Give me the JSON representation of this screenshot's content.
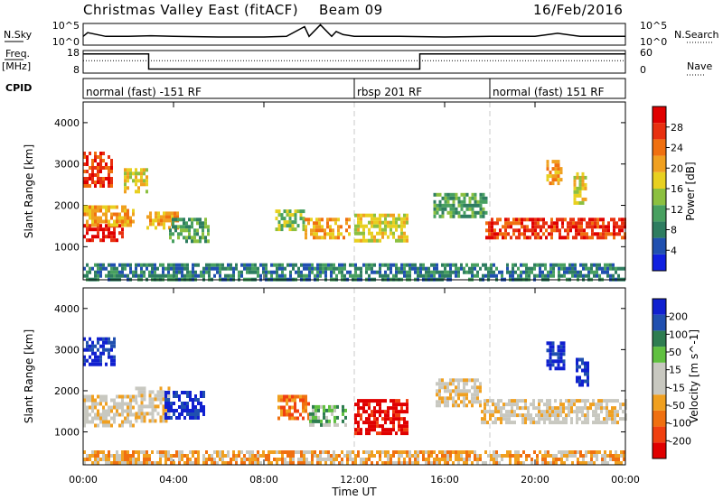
{
  "header": {
    "station": "Christmas Valley East (fitACF)",
    "beam": "Beam 09",
    "date": "16/Feb/2016"
  },
  "left_labels": {
    "nsky": "N.Sky",
    "freq": "Freq.",
    "freq_unit": "[MHz]",
    "cpid": "CPID"
  },
  "right_labels": {
    "nsearch": "N.Search",
    "nave": "Nave"
  },
  "cpid_segments": [
    {
      "label": "normal (fast) -151 RF",
      "start_hour": 0
    },
    {
      "label": "rbsp 201 RF",
      "start_hour": 12
    },
    {
      "label": "normal (fast) 151 RF",
      "start_hour": 18
    }
  ],
  "colors": {
    "power_scale": [
      "#1020e0",
      "#2050b0",
      "#2e7d60",
      "#48a060",
      "#8cc040",
      "#e8d020",
      "#f0a020",
      "#f07010",
      "#e83010",
      "#e00000"
    ],
    "velocity_scale": [
      "#e00000",
      "#f04010",
      "#f07010",
      "#f0a020",
      "#c8c8c0",
      "#c8c8c0",
      "#60c040",
      "#2e7d50",
      "#2050b0",
      "#1020d0"
    ],
    "noise_trace": "#000000",
    "guide_line": "#c8c8c8"
  },
  "chart_data": [
    {
      "type": "line",
      "name_label": "N.Sky",
      "ylabels": [
        "10^5",
        "10^0"
      ],
      "right_ylabels": [
        "10^5",
        "10^0"
      ],
      "x": [
        0,
        0.2,
        1,
        2,
        3,
        4,
        6,
        8,
        9,
        9.8,
        10,
        10.5,
        11,
        11.2,
        11.5,
        12,
        14,
        16,
        18,
        20,
        21,
        22,
        24
      ],
      "y": [
        1.0,
        1.6,
        1.0,
        1.0,
        1.1,
        1.0,
        0.9,
        0.9,
        1.0,
        2.6,
        1.0,
        2.9,
        1.0,
        1.8,
        1.3,
        1.0,
        1.0,
        0.9,
        1.0,
        1.0,
        1.5,
        1.0,
        1.0
      ]
    },
    {
      "type": "line",
      "name_label": "Freq. [MHz]",
      "ylim": [
        8,
        18
      ],
      "yticks": [
        8,
        18
      ],
      "right_yticks": [
        0,
        60
      ],
      "x": [
        0,
        2.9,
        2.9,
        14.9,
        14.9,
        24
      ],
      "frequency": [
        16.5,
        16.5,
        9.8,
        9.8,
        16.5,
        16.5
      ],
      "nave_level": 13.5
    },
    {
      "type": "heatmap",
      "parameter": "Power [dB]",
      "ylabel": "Slant Range [km]",
      "ylim": [
        200,
        4500
      ],
      "yticks": [
        1000,
        2000,
        3000,
        4000
      ],
      "xlim": [
        0,
        24
      ],
      "colorbar_ticks": [
        4,
        8,
        12,
        16,
        20,
        24,
        28
      ],
      "regions": [
        {
          "t0": 0.0,
          "t1": 1.8,
          "r0": 1150,
          "r1": 1550,
          "level": 9
        },
        {
          "t0": 0.0,
          "t1": 2.2,
          "r0": 1550,
          "r1": 2000,
          "level": 6
        },
        {
          "t0": 0.0,
          "t1": 1.3,
          "r0": 2500,
          "r1": 3300,
          "level": 8
        },
        {
          "t0": 1.8,
          "t1": 2.8,
          "r0": 2300,
          "r1": 2900,
          "level": 5
        },
        {
          "t0": 2.8,
          "t1": 4.2,
          "r0": 1500,
          "r1": 1850,
          "level": 6
        },
        {
          "t0": 3.8,
          "t1": 5.5,
          "r0": 1100,
          "r1": 1700,
          "level": 3
        },
        {
          "t0": 8.5,
          "t1": 9.8,
          "r0": 1400,
          "r1": 1900,
          "level": 4
        },
        {
          "t0": 9.8,
          "t1": 11.8,
          "r0": 1250,
          "r1": 1700,
          "level": 6
        },
        {
          "t0": 12.0,
          "t1": 14.4,
          "r0": 1150,
          "r1": 1800,
          "level": 5
        },
        {
          "t0": 15.5,
          "t1": 17.8,
          "r0": 1700,
          "r1": 2300,
          "level": 3
        },
        {
          "t0": 17.8,
          "t1": 24.0,
          "r0": 1200,
          "r1": 1700,
          "level": 8
        },
        {
          "t0": 20.5,
          "t1": 21.2,
          "r0": 2500,
          "r1": 3100,
          "level": 6
        },
        {
          "t0": 21.7,
          "t1": 22.2,
          "r0": 2100,
          "r1": 2800,
          "level": 5
        },
        {
          "t0": 0.0,
          "t1": 24.0,
          "r0": 250,
          "r1": 600,
          "level": 2
        }
      ]
    },
    {
      "type": "heatmap",
      "parameter": "Velocity [m s^-1]",
      "ylabel": "Slant Range [km]",
      "ylim": [
        200,
        4500
      ],
      "yticks": [
        1000,
        2000,
        3000,
        4000
      ],
      "xlim": [
        0,
        24
      ],
      "xticks": [
        "00:00",
        "04:00",
        "08:00",
        "12:00",
        "16:00",
        "20:00",
        "00:00"
      ],
      "xlabel": "Time UT",
      "colorbar_ticks": [
        -200,
        -100,
        -50,
        -15,
        15,
        50,
        100,
        200
      ],
      "regions": [
        {
          "t0": 0.0,
          "t1": 1.4,
          "r0": 2600,
          "r1": 3300,
          "level": 9
        },
        {
          "t0": 0.0,
          "t1": 2.3,
          "r0": 1150,
          "r1": 1900,
          "level": 4
        },
        {
          "t0": 2.3,
          "t1": 3.8,
          "r0": 1300,
          "r1": 2100,
          "level": 4
        },
        {
          "t0": 3.6,
          "t1": 5.3,
          "r0": 1300,
          "r1": 2000,
          "level": 9
        },
        {
          "t0": 8.6,
          "t1": 10.0,
          "r0": 1300,
          "r1": 1900,
          "level": 2
        },
        {
          "t0": 10.0,
          "t1": 11.6,
          "r0": 1200,
          "r1": 1650,
          "level": 6
        },
        {
          "t0": 12.0,
          "t1": 14.4,
          "r0": 1000,
          "r1": 1800,
          "level": 0
        },
        {
          "t0": 15.6,
          "t1": 17.6,
          "r0": 1600,
          "r1": 2300,
          "level": 4
        },
        {
          "t0": 17.6,
          "t1": 24.0,
          "r0": 1200,
          "r1": 1800,
          "level": 4
        },
        {
          "t0": 20.5,
          "t1": 21.3,
          "r0": 2500,
          "r1": 3200,
          "level": 9
        },
        {
          "t0": 21.8,
          "t1": 22.3,
          "r0": 2100,
          "r1": 2800,
          "level": 9
        },
        {
          "t0": 0.0,
          "t1": 24.0,
          "r0": 250,
          "r1": 550,
          "level": 3
        }
      ]
    }
  ]
}
